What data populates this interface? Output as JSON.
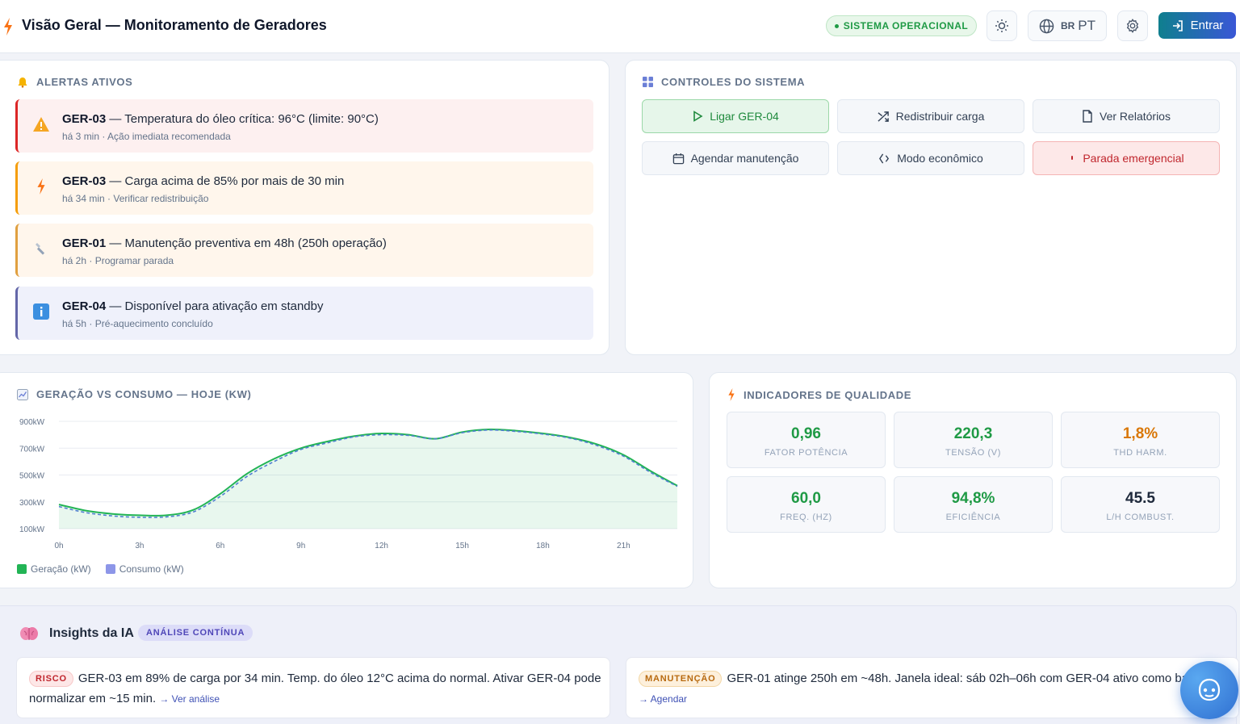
{
  "header": {
    "title": "Visão Geral — Monitoramento de Geradores",
    "status": "SISTEMA OPERACIONAL",
    "lang_flag": "BR",
    "lang_label": "PT",
    "login_label": "Entrar"
  },
  "alerts": {
    "title": "ALERTAS ATIVOS",
    "items": [
      {
        "id": "GER-03",
        "text": " — Temperatura do óleo crítica: 96°C (limite: 90°C)",
        "sub": "há 3 min · Ação imediata recomendada",
        "icon": "warning-icon"
      },
      {
        "id": "GER-03",
        "text": " — Carga acima de 85% por mais de 30 min",
        "sub": "há 34 min · Verificar redistribuição",
        "icon": "bolt-icon"
      },
      {
        "id": "GER-01",
        "text": " — Manutenção preventiva em 48h (250h operação)",
        "sub": "há 2h · Programar parada",
        "icon": "wrench-icon"
      },
      {
        "id": "GER-04",
        "text": " — Disponível para ativação em standby",
        "sub": "há 5h · Pré-aquecimento concluído",
        "icon": "info-icon"
      }
    ]
  },
  "controls": {
    "title": "CONTROLES DO SISTEMA",
    "buttons": [
      {
        "label": "Ligar GER-04",
        "icon": "play-icon"
      },
      {
        "label": "Redistribuir carga",
        "icon": "shuffle-icon"
      },
      {
        "label": "Ver Relatórios",
        "icon": "document-icon"
      },
      {
        "label": "Agendar manutenção",
        "icon": "calendar-icon"
      },
      {
        "label": "Modo econômico",
        "icon": "eco-icon"
      },
      {
        "label": "Parada emergencial",
        "icon": "stop-icon"
      }
    ]
  },
  "chart_data": {
    "type": "area",
    "title": "GERAÇÃO VS CONSUMO — HOJE (KW)",
    "x_ticks": [
      "0h",
      "3h",
      "6h",
      "9h",
      "12h",
      "15h",
      "18h",
      "21h"
    ],
    "y_ticks": [
      "900kW",
      "700kW",
      "500kW",
      "300kW",
      "100kW"
    ],
    "ylim": [
      100,
      900
    ],
    "xlim": [
      0,
      23
    ],
    "x": [
      0,
      1,
      2,
      3,
      4,
      5,
      6,
      7,
      8,
      9,
      10,
      11,
      12,
      13,
      14,
      15,
      16,
      17,
      18,
      19,
      20,
      21,
      22,
      23
    ],
    "series": [
      {
        "name": "Geração (kW)",
        "color": "#22b455",
        "values": [
          280,
          235,
          210,
          200,
          200,
          240,
          360,
          510,
          620,
          700,
          750,
          790,
          810,
          800,
          770,
          820,
          840,
          830,
          810,
          780,
          730,
          650,
          530,
          420
        ]
      },
      {
        "name": "Consumo (kW)",
        "color": "#4f7fd0",
        "values": [
          265,
          220,
          195,
          185,
          188,
          225,
          340,
          490,
          600,
          690,
          740,
          785,
          800,
          795,
          770,
          815,
          835,
          825,
          805,
          775,
          720,
          640,
          520,
          415
        ]
      }
    ],
    "legend": "bottom-left",
    "grid": true
  },
  "quality": {
    "title": "INDICADORES DE QUALIDADE",
    "tiles": [
      {
        "value": "0,96",
        "label": "FATOR POTÊNCIA",
        "color": "#1f9a45"
      },
      {
        "value": "220,3",
        "label": "TENSÃO (V)",
        "color": "#1f9a45"
      },
      {
        "value": "1,8%",
        "label": "THD HARM.",
        "color": "#d97706"
      },
      {
        "value": "60,0",
        "label": "FREQ. (HZ)",
        "color": "#1f9a45"
      },
      {
        "value": "94,8%",
        "label": "EFICIÊNCIA",
        "color": "#1f9a45"
      },
      {
        "value": "45.5",
        "label": "L/H COMBUST.",
        "color": "#1e293b"
      }
    ]
  },
  "insights": {
    "title": "Insights da IA",
    "badge": "ANÁLISE CONTÍNUA",
    "items": [
      {
        "tag": "RISCO",
        "text": "GER-03 em 89% de carga por 34 min. Temp. do óleo 12°C acima do normal. Ativar GER-04 pode normalizar em ~15 min.",
        "link": "→ Ver análise"
      },
      {
        "tag": "MANUTENÇÃO",
        "text": "GER-01 atinge 250h em ~48h. Janela ideal: sáb 02h–06h com GER-04 ativo como backup.",
        "link": "→ Agendar"
      }
    ]
  }
}
